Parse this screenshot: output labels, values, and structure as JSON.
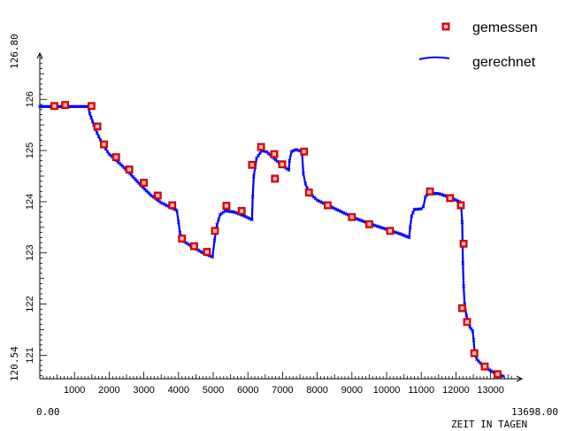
{
  "chart_data": {
    "type": "scatter",
    "xlabel": "ZEIT IN TAGEN",
    "x_range_labels": {
      "min": "0.00",
      "max": "13698.00"
    },
    "y_range_labels": {
      "min": "120.54",
      "max": "126.80"
    },
    "xlim": [
      0,
      13698
    ],
    "ylim": [
      120.54,
      126.8
    ],
    "x_ticks": [
      1000,
      2000,
      3000,
      4000,
      5000,
      6000,
      7000,
      8000,
      9000,
      10000,
      11000,
      12000,
      13000
    ],
    "y_ticks": [
      121,
      122,
      123,
      124,
      125,
      126
    ],
    "legend_position": "top-right",
    "colors": {
      "measured": "#ff0000",
      "computed": "#0000ff"
    },
    "series": [
      {
        "name": "gemessen",
        "marker": "square",
        "points": [
          [
            420,
            125.87
          ],
          [
            730,
            125.89
          ],
          [
            1490,
            125.87
          ],
          [
            1660,
            125.47
          ],
          [
            1850,
            125.12
          ],
          [
            2200,
            124.87
          ],
          [
            2580,
            124.63
          ],
          [
            3000,
            124.37
          ],
          [
            3400,
            124.12
          ],
          [
            3820,
            123.93
          ],
          [
            4100,
            123.28
          ],
          [
            4450,
            123.13
          ],
          [
            4820,
            123.02
          ],
          [
            5050,
            123.43
          ],
          [
            5380,
            123.92
          ],
          [
            5820,
            123.82
          ],
          [
            6120,
            124.72
          ],
          [
            6380,
            125.07
          ],
          [
            6760,
            124.93
          ],
          [
            6780,
            124.45
          ],
          [
            6990,
            124.73
          ],
          [
            7620,
            124.98
          ],
          [
            7760,
            124.18
          ],
          [
            8300,
            123.93
          ],
          [
            9000,
            123.7
          ],
          [
            9500,
            123.56
          ],
          [
            10100,
            123.43
          ],
          [
            11250,
            124.2
          ],
          [
            11830,
            124.07
          ],
          [
            12140,
            123.93
          ],
          [
            12220,
            123.18
          ],
          [
            12180,
            121.92
          ],
          [
            12320,
            121.65
          ],
          [
            12530,
            121.04
          ],
          [
            12830,
            120.78
          ],
          [
            13200,
            120.63
          ]
        ]
      },
      {
        "name": "gerechnet",
        "marker": "line",
        "points": [
          [
            0,
            125.86
          ],
          [
            1400,
            125.86
          ],
          [
            1440,
            125.72
          ],
          [
            1600,
            125.42
          ],
          [
            1800,
            125.13
          ],
          [
            2000,
            124.93
          ],
          [
            2300,
            124.75
          ],
          [
            2600,
            124.55
          ],
          [
            2900,
            124.33
          ],
          [
            3200,
            124.13
          ],
          [
            3500,
            123.98
          ],
          [
            3950,
            123.83
          ],
          [
            4000,
            123.6
          ],
          [
            4040,
            123.4
          ],
          [
            4120,
            123.24
          ],
          [
            4400,
            123.12
          ],
          [
            4700,
            123.0
          ],
          [
            4980,
            122.92
          ],
          [
            5040,
            123.25
          ],
          [
            5110,
            123.55
          ],
          [
            5200,
            123.75
          ],
          [
            5350,
            123.82
          ],
          [
            5600,
            123.8
          ],
          [
            5900,
            123.72
          ],
          [
            6120,
            123.65
          ],
          [
            6140,
            124.1
          ],
          [
            6170,
            124.5
          ],
          [
            6250,
            124.85
          ],
          [
            6400,
            125.0
          ],
          [
            6550,
            124.97
          ],
          [
            6800,
            124.82
          ],
          [
            7000,
            124.7
          ],
          [
            7180,
            124.62
          ],
          [
            7200,
            124.8
          ],
          [
            7260,
            124.98
          ],
          [
            7400,
            125.02
          ],
          [
            7500,
            124.99
          ],
          [
            7560,
            124.97
          ],
          [
            7600,
            124.55
          ],
          [
            7660,
            124.35
          ],
          [
            7760,
            124.18
          ],
          [
            8000,
            124.03
          ],
          [
            8400,
            123.9
          ],
          [
            8800,
            123.77
          ],
          [
            9200,
            123.65
          ],
          [
            9600,
            123.55
          ],
          [
            10000,
            123.46
          ],
          [
            10400,
            123.37
          ],
          [
            10650,
            123.3
          ],
          [
            10680,
            123.5
          ],
          [
            10720,
            123.72
          ],
          [
            10800,
            123.85
          ],
          [
            11000,
            123.86
          ],
          [
            11060,
            123.9
          ],
          [
            11120,
            124.1
          ],
          [
            11200,
            124.16
          ],
          [
            11500,
            124.16
          ],
          [
            11800,
            124.09
          ],
          [
            12100,
            124.0
          ],
          [
            12150,
            123.93
          ],
          [
            12180,
            123.6
          ],
          [
            12200,
            122.8
          ],
          [
            12220,
            122.35
          ],
          [
            12250,
            122.0
          ],
          [
            12300,
            121.78
          ],
          [
            12360,
            121.62
          ],
          [
            12400,
            121.55
          ],
          [
            12480,
            121.48
          ],
          [
            12510,
            121.3
          ],
          [
            12540,
            121.05
          ],
          [
            12600,
            120.92
          ],
          [
            12800,
            120.78
          ],
          [
            13100,
            120.66
          ],
          [
            13400,
            120.58
          ]
        ]
      }
    ]
  }
}
